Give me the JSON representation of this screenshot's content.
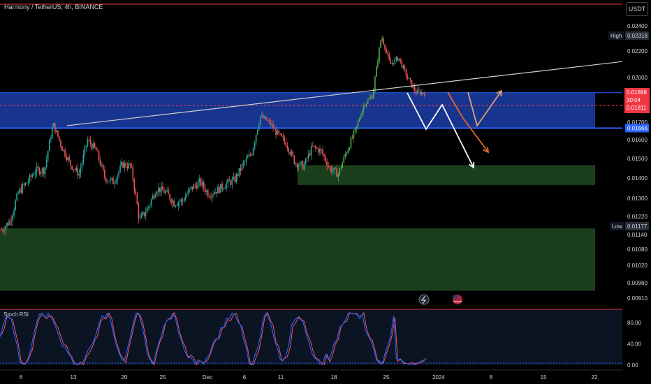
{
  "header": {
    "symbol": "Harmony / TetherUS, 4h, BINANCE",
    "currency_button": "USDT"
  },
  "price_labels": {
    "high": {
      "tag": "High",
      "value": "0.02318"
    },
    "low": {
      "tag": "Low",
      "value": "0.01177"
    },
    "current": {
      "value": "0.01898",
      "countdown": "30:04",
      "ref": "0.01811"
    },
    "line": {
      "value": "0.01666"
    }
  },
  "colors": {
    "up": "#26a69a",
    "up_bright": "#4caf50",
    "down": "#ef5350",
    "blue_zone": "#1a3a9e",
    "blue_line": "#2962ff",
    "green_zone": "#1e4620",
    "red_line": "#f23645",
    "orange_arrow": "#e0682d",
    "tan_arrow": "#d9a27a",
    "white_arrow": "#ffffff",
    "rsi_k": "#2962ff",
    "rsi_d": "#f7525f"
  },
  "icons": {
    "flash": "flash-icon",
    "flag": "us-flag-icon"
  },
  "chart_data": {
    "type": "candlestick",
    "title": "Harmony / TetherUS, 4h, BINANCE",
    "ylim": [
      0.00878,
      0.02471
    ],
    "yticks": [
      "0.02400",
      "0.02200",
      "0.02000",
      "0.01700",
      "0.01600",
      "0.01500",
      "0.01400",
      "0.01300",
      "0.01220",
      "0.01140",
      "0.01080",
      "0.01020",
      "0.00960",
      "0.00910"
    ],
    "xticks": [
      "6",
      "13",
      "20",
      "25",
      "Dec",
      "6",
      "11",
      "18",
      "25",
      "2024",
      "8",
      "15",
      "22"
    ],
    "price_path": [
      [
        0.0116,
        0.012
      ],
      [
        0.0133,
        0.0138
      ],
      [
        0.0144,
        0.0144
      ],
      [
        0.0169,
        0.0156
      ],
      [
        0.0147,
        0.0142
      ],
      [
        0.016,
        0.0154
      ],
      [
        0.014,
        0.0138
      ],
      [
        0.0147,
        0.0146
      ],
      [
        0.012,
        0.0126
      ],
      [
        0.0135,
        0.0133
      ],
      [
        0.0128,
        0.0129
      ],
      [
        0.0135,
        0.0138
      ],
      [
        0.0132,
        0.0134
      ],
      [
        0.0137,
        0.0139
      ],
      [
        0.0147,
        0.0153
      ],
      [
        0.0174,
        0.017
      ],
      [
        0.0163,
        0.0158
      ],
      [
        0.0148,
        0.0146
      ],
      [
        0.0156,
        0.0154
      ],
      [
        0.0145,
        0.0142
      ],
      [
        0.0154,
        0.0165
      ],
      [
        0.0182,
        0.0188
      ],
      [
        0.0232,
        0.021
      ],
      [
        0.0215,
        0.02
      ],
      [
        0.019,
        0.01898
      ]
    ],
    "zones": [
      {
        "name": "blue-zone",
        "from": 0.01666,
        "to": 0.01898
      },
      {
        "name": "green-zone-upper",
        "from": 0.01366,
        "to": 0.01466
      },
      {
        "name": "green-zone-lower",
        "from": 0.00934,
        "to": 0.01167
      }
    ],
    "trendline": [
      [
        0.0168,
        0.0212
      ]
    ],
    "oscillator": {
      "name": "Stoch RSI",
      "yticks": [
        "80.00",
        "40.00",
        "0.00"
      ],
      "ylim": [
        0,
        100
      ]
    }
  }
}
